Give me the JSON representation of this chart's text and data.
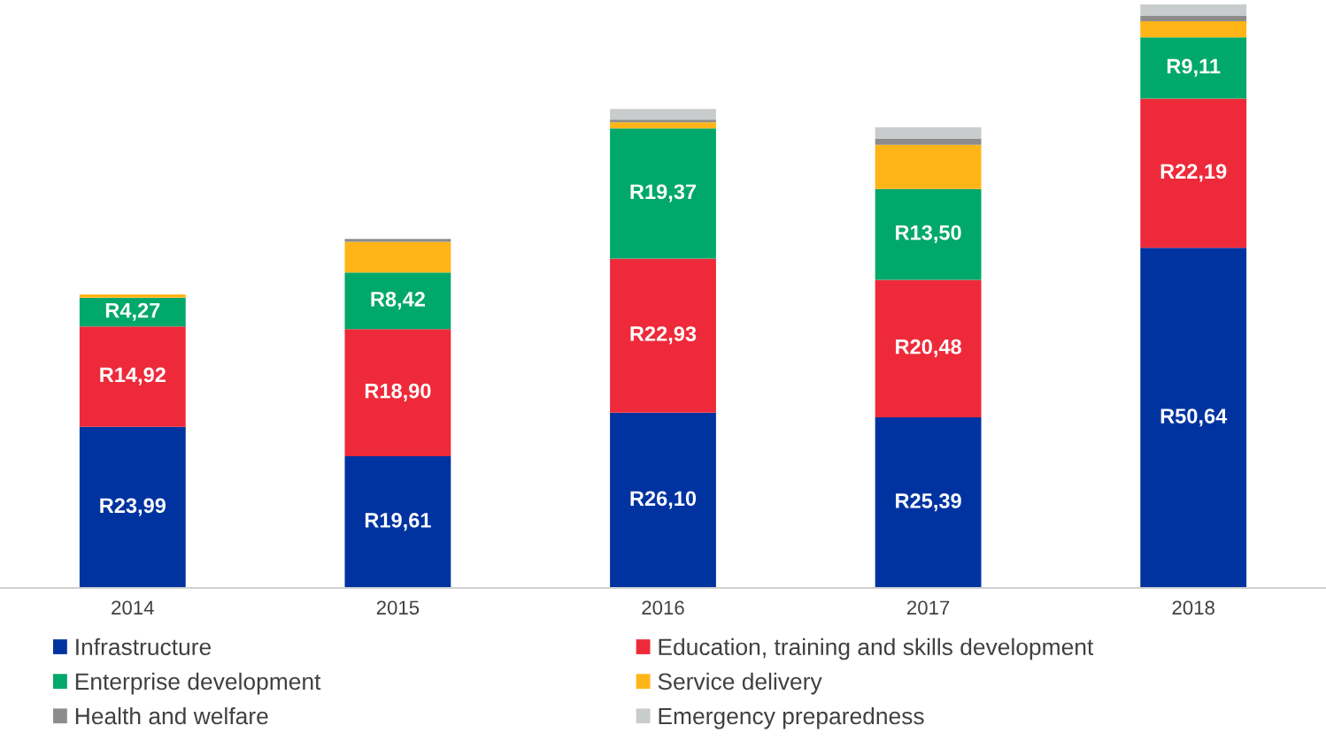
{
  "chart_data": {
    "type": "bar",
    "stacked": true,
    "categories": [
      "2014",
      "2015",
      "2016",
      "2017",
      "2018"
    ],
    "legend": "bottom",
    "grid": false,
    "series": [
      {
        "name": "Infrastructure",
        "color": "#0033a0",
        "values": [
          23.99,
          19.61,
          26.1,
          25.39,
          50.64
        ],
        "value_labels": [
          "R23,99",
          "R19,61",
          "R26,10",
          "R25,39",
          "R50,64"
        ]
      },
      {
        "name": "Education, training and skills development",
        "color": "#ee2a3a",
        "values": [
          14.92,
          18.9,
          22.93,
          20.48,
          22.19
        ],
        "value_labels": [
          "R14,92",
          "R18,90",
          "R22,93",
          "R20,48",
          "R22,19"
        ]
      },
      {
        "name": "Enterprise development",
        "color": "#00a86b",
        "values": [
          4.27,
          8.42,
          19.37,
          13.5,
          9.11
        ],
        "value_labels": [
          "R4,27",
          "R8,42",
          "R19,37",
          "R13,50",
          "R9,11"
        ]
      },
      {
        "name": "Service delivery",
        "color": "#ffb517",
        "values": [
          0.5,
          4.6,
          0.9,
          6.6,
          2.4
        ]
      },
      {
        "name": "Health and welfare",
        "color": "#8c8c8c",
        "values": [
          null,
          0.4,
          0.4,
          0.9,
          0.8
        ]
      },
      {
        "name": "Emergency preparedness",
        "color": "#c8cccc",
        "values": [
          null,
          null,
          1.6,
          1.7,
          1.7
        ]
      }
    ]
  }
}
